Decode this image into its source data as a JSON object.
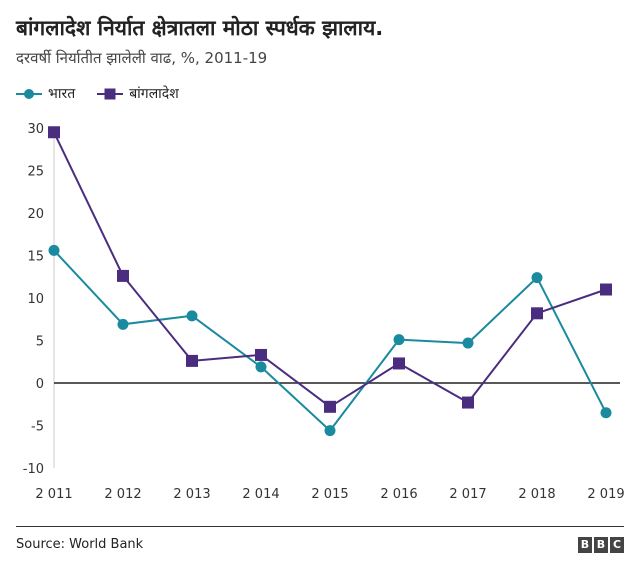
{
  "chart_data": {
    "type": "line",
    "title": "बांगलादेश निर्यात क्षेत्रातला मोठा स्पर्धक झालाय.",
    "subtitle": "दरवर्षी निर्यातीत झालेली वाढ, %, 2011-19",
    "categories": [
      "2 011",
      "2 012",
      "2 013",
      "2 014",
      "2 015",
      "2 016",
      "2 017",
      "2 018",
      "2 019"
    ],
    "series": [
      {
        "name": "भारत",
        "color": "#1a8a9e",
        "marker": "circle",
        "values": [
          15.6,
          6.9,
          7.9,
          1.9,
          -5.6,
          5.1,
          4.7,
          12.4,
          -3.5
        ]
      },
      {
        "name": "बांगलादेश",
        "color": "#4b2d7f",
        "marker": "square",
        "values": [
          29.5,
          12.6,
          2.6,
          3.3,
          -2.8,
          2.3,
          -2.3,
          8.2,
          11.0
        ]
      }
    ],
    "yticks": [
      "30",
      "25",
      "20",
      "15",
      "10",
      "5",
      "0",
      "-5",
      "-10"
    ],
    "ylim": [
      -10,
      30
    ],
    "legend_position": "top-left",
    "source": "Source: World Bank",
    "brand": [
      "B",
      "B",
      "C"
    ]
  }
}
